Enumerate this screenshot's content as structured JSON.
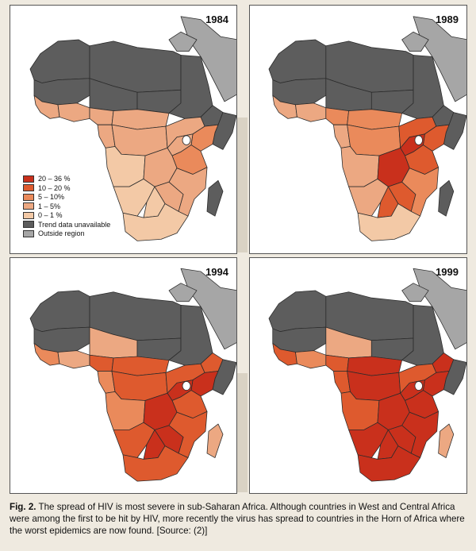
{
  "figure": {
    "panels": [
      {
        "year": "1984",
        "region_levels": {
          "nw": "u",
          "ne": "u",
          "sah_w": "u",
          "sah_c": "u",
          "sah_e": "u",
          "sudan": "u",
          "horn": "u",
          "somalia": "u",
          "w_coast": "b",
          "w_inner": "b",
          "gulf": "b",
          "c_n": "b",
          "c_w": "b",
          "c_c": "b",
          "c_e": "b",
          "kenya": "c",
          "tanz": "c",
          "lakes": "b",
          "angola": "a",
          "zambia": "b",
          "moz": "b",
          "zimb": "b",
          "namib": "a",
          "botsw": "a",
          "sa": "a",
          "madag": "u"
        }
      },
      {
        "year": "1989",
        "region_levels": {
          "nw": "u",
          "ne": "u",
          "sah_w": "u",
          "sah_c": "u",
          "sah_e": "u",
          "sudan": "u",
          "horn": "u",
          "somalia": "u",
          "w_coast": "b",
          "w_inner": "b",
          "gulf": "c",
          "c_n": "c",
          "c_w": "b",
          "c_c": "c",
          "c_e": "d",
          "kenya": "d",
          "tanz": "d",
          "lakes": "e",
          "angola": "b",
          "zambia": "e",
          "moz": "c",
          "zimb": "d",
          "namib": "b",
          "botsw": "d",
          "sa": "a",
          "madag": "u"
        }
      },
      {
        "year": "1994",
        "region_levels": {
          "nw": "u",
          "ne": "u",
          "sah_w": "u",
          "sah_c": "b",
          "sah_e": "u",
          "sudan": "u",
          "horn": "d",
          "somalia": "u",
          "w_coast": "c",
          "w_inner": "b",
          "gulf": "d",
          "c_n": "d",
          "c_w": "c",
          "c_c": "d",
          "c_e": "d",
          "kenya": "e",
          "tanz": "d",
          "lakes": "e",
          "angola": "c",
          "zambia": "e",
          "moz": "d",
          "zimb": "e",
          "namib": "d",
          "botsw": "e",
          "sa": "d",
          "madag": "b"
        }
      },
      {
        "year": "1999",
        "region_levels": {
          "nw": "u",
          "ne": "u",
          "sah_w": "u",
          "sah_c": "b",
          "sah_e": "u",
          "sudan": "u",
          "horn": "e",
          "somalia": "u",
          "w_coast": "d",
          "w_inner": "c",
          "gulf": "d",
          "c_n": "e",
          "c_w": "d",
          "c_c": "e",
          "c_e": "d",
          "kenya": "e",
          "tanz": "e",
          "lakes": "e",
          "angola": "d",
          "zambia": "e",
          "moz": "e",
          "zimb": "e",
          "namib": "e",
          "botsw": "e",
          "sa": "e",
          "madag": "b"
        }
      }
    ],
    "legend": [
      {
        "key": "e",
        "label": "20 – 36 %",
        "color": "#c9301c"
      },
      {
        "key": "d",
        "label": "10 – 20 %",
        "color": "#de5a2e"
      },
      {
        "key": "c",
        "label": "5 – 10%",
        "color": "#ea8a5b"
      },
      {
        "key": "b",
        "label": "1 – 5%",
        "color": "#eca882"
      },
      {
        "key": "a",
        "label": "0 – 1 %",
        "color": "#f3c9a6"
      },
      {
        "key": "u",
        "label": "Trend data unavailable",
        "color": "#5d5d5d"
      },
      {
        "key": "o",
        "label": "Outside region",
        "color": "#a6a6a6"
      }
    ],
    "caption": {
      "label": "Fig. 2.",
      "text": " The spread of HIV is most severe in sub-Saharan Africa. Although countries in West and Central Africa were among the first to be hit by HIV, more recently the virus has spread to countries in the Horn of Africa where the worst epidemics are now found. [Source: (2)]"
    }
  }
}
